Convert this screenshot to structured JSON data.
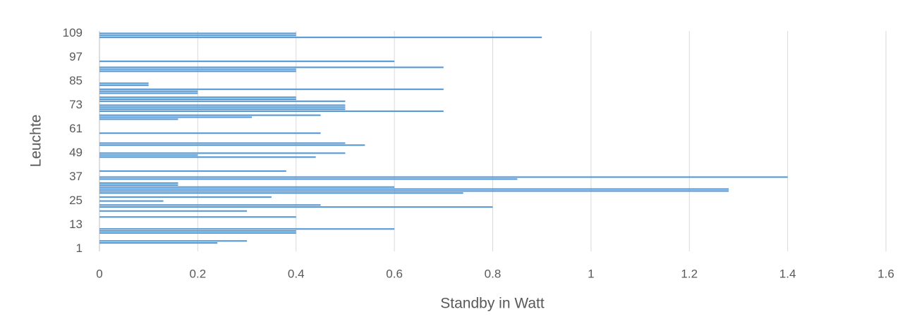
{
  "chart_data": {
    "type": "hbar",
    "x_label": "Standby in Watt",
    "y_label": "Leuchte",
    "categories": [
      "1",
      null,
      null,
      null,
      null,
      null,
      null,
      null,
      null,
      null,
      null,
      null,
      "13",
      null,
      null,
      null,
      null,
      null,
      null,
      null,
      null,
      null,
      null,
      null,
      "25",
      null,
      null,
      null,
      null,
      null,
      null,
      null,
      null,
      null,
      null,
      null,
      "37",
      null,
      null,
      null,
      null,
      null,
      null,
      null,
      null,
      null,
      null,
      null,
      "49",
      null,
      null,
      null,
      null,
      null,
      null,
      null,
      null,
      null,
      null,
      null,
      "61",
      null,
      null,
      null,
      null,
      null,
      null,
      null,
      null,
      null,
      null,
      null,
      "73",
      null,
      null,
      null,
      null,
      null,
      null,
      null,
      null,
      null,
      null,
      null,
      "85",
      null,
      null,
      null,
      null,
      null,
      null,
      null,
      null,
      null,
      null,
      null,
      "97",
      null,
      null,
      null,
      null,
      null,
      null,
      null,
      null,
      null,
      null,
      null,
      "109"
    ],
    "values": [
      0,
      0,
      0,
      0.24,
      0.3,
      0,
      0,
      0,
      0.4,
      0.4,
      0.6,
      0,
      0,
      0,
      0,
      0,
      0.4,
      0,
      0,
      0.3,
      0,
      0.8,
      0.45,
      0,
      0.13,
      0,
      0.35,
      0,
      0.74,
      1.28,
      1.28,
      0.6,
      0.16,
      0.16,
      0,
      0.85,
      1.4,
      0,
      0,
      0.38,
      0,
      0,
      0,
      0,
      0,
      0,
      0.44,
      0.2,
      0.5,
      0,
      0,
      0,
      0.54,
      0.5,
      0,
      0,
      0,
      0,
      0.45,
      0,
      0,
      0,
      0,
      0,
      0,
      0.16,
      0.31,
      0.45,
      0,
      0.7,
      0.5,
      0.5,
      0.5,
      0,
      0.5,
      0.4,
      0.4,
      0,
      0.2,
      0.2,
      0.7,
      0,
      0.1,
      0.1,
      0,
      0,
      0,
      0,
      0,
      0.4,
      0.4,
      0.7,
      0,
      0,
      0.6,
      0,
      0,
      0,
      0,
      0,
      0,
      0,
      0,
      0,
      0,
      0,
      0.9,
      0.4,
      0.4
    ],
    "color": "#5b9bd5",
    "xlim": [
      0,
      1.6
    ],
    "xticks": [
      0,
      0.2,
      0.4,
      0.6,
      0.8,
      1,
      1.2,
      1.4,
      1.6
    ],
    "grid": true
  }
}
